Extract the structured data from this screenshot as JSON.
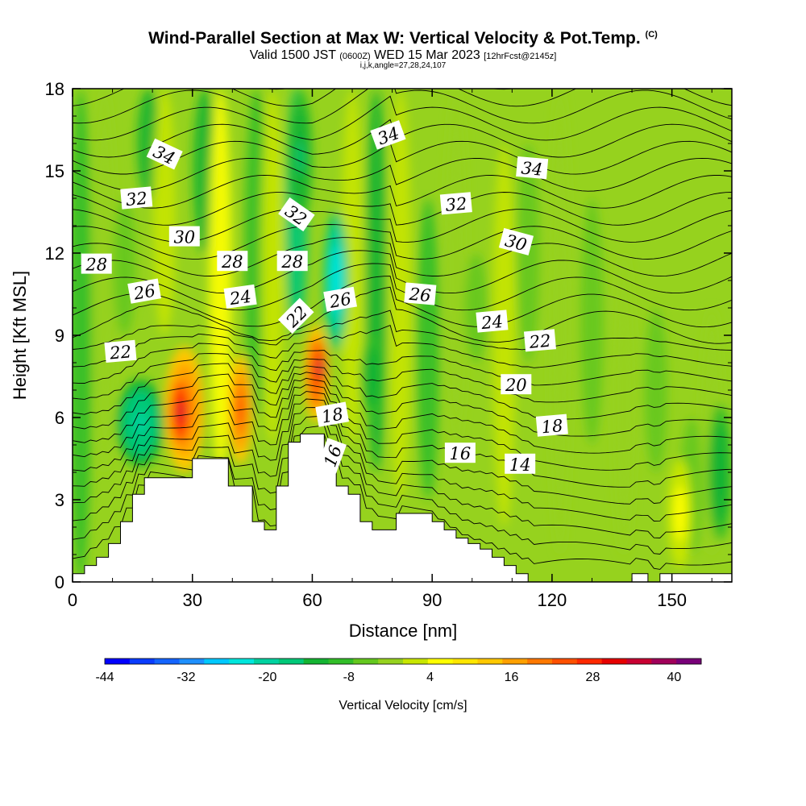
{
  "title": {
    "main": "Wind-Parallel Section at Max W: Vertical Velocity & Pot.Temp.",
    "copyright": "(C)",
    "valid_prefix": "Valid 1500 JST",
    "valid_utc": "(0600Z)",
    "valid_date": "WED 15 Mar 2023",
    "forecast": "[12hrFcst@2145z]",
    "indices": "i,j,k,angle=27,28,24,107"
  },
  "chart_data": {
    "type": "heatmap",
    "xlabel": "Distance [nm]",
    "ylabel": "Height [Kft MSL]",
    "xlim": [
      0,
      165
    ],
    "ylim": [
      0,
      18
    ],
    "xticks": [
      0,
      30,
      60,
      90,
      120,
      150
    ],
    "yticks": [
      0,
      3,
      6,
      9,
      12,
      15,
      18
    ],
    "colorbar": {
      "label": "Vertical Velocity [cm/s]",
      "min": -44,
      "max": 44,
      "step": 4,
      "tick_labels": [
        -44,
        -32,
        -20,
        -8,
        4,
        16,
        28,
        40
      ],
      "colors": [
        "#0000ff",
        "#0a3cff",
        "#1464ff",
        "#1e90ff",
        "#00c8ff",
        "#00e6dc",
        "#00d2a0",
        "#00c878",
        "#14b432",
        "#32be28",
        "#64c81e",
        "#96d21e",
        "#c8e600",
        "#ffff00",
        "#ffe600",
        "#ffc800",
        "#ffa000",
        "#ff7800",
        "#ff5000",
        "#ff2800",
        "#e60000",
        "#c80032",
        "#a0005a",
        "#780078"
      ]
    },
    "contours": {
      "variable": "Potential Temperature",
      "labels": [
        {
          "text": "34",
          "x": 23,
          "y": 15.6,
          "angle": 25
        },
        {
          "text": "34",
          "x": 79,
          "y": 16.3,
          "angle": -20
        },
        {
          "text": "34",
          "x": 115,
          "y": 15.1,
          "angle": 5
        },
        {
          "text": "32",
          "x": 16,
          "y": 14.0,
          "angle": -5
        },
        {
          "text": "32",
          "x": 56,
          "y": 13.4,
          "angle": 35
        },
        {
          "text": "32",
          "x": 96,
          "y": 13.8,
          "angle": -5
        },
        {
          "text": "30",
          "x": 28,
          "y": 12.6,
          "angle": 0
        },
        {
          "text": "30",
          "x": 111,
          "y": 12.4,
          "angle": 15
        },
        {
          "text": "28",
          "x": 6,
          "y": 11.6,
          "angle": 0
        },
        {
          "text": "28",
          "x": 40,
          "y": 11.7,
          "angle": 0
        },
        {
          "text": "28",
          "x": 55,
          "y": 11.7,
          "angle": 0
        },
        {
          "text": "26",
          "x": 18,
          "y": 10.6,
          "angle": -10
        },
        {
          "text": "26",
          "x": 67,
          "y": 10.3,
          "angle": -10
        },
        {
          "text": "26",
          "x": 87,
          "y": 10.5,
          "angle": 5
        },
        {
          "text": "24",
          "x": 42,
          "y": 10.4,
          "angle": -8
        },
        {
          "text": "24",
          "x": 105,
          "y": 9.5,
          "angle": -5
        },
        {
          "text": "22",
          "x": 12,
          "y": 8.4,
          "angle": -5
        },
        {
          "text": "22",
          "x": 56,
          "y": 9.7,
          "angle": -45
        },
        {
          "text": "22",
          "x": 117,
          "y": 8.8,
          "angle": -5
        },
        {
          "text": "20",
          "x": 111,
          "y": 7.2,
          "angle": 0
        },
        {
          "text": "18",
          "x": 65,
          "y": 6.1,
          "angle": -10
        },
        {
          "text": "18",
          "x": 120,
          "y": 5.7,
          "angle": -5
        },
        {
          "text": "16",
          "x": 65,
          "y": 4.6,
          "angle": -70
        },
        {
          "text": "16",
          "x": 97,
          "y": 4.7,
          "angle": 0
        },
        {
          "text": "14",
          "x": 112,
          "y": 4.3,
          "angle": 0
        }
      ]
    },
    "terrain": [
      [
        0,
        0.3
      ],
      [
        3,
        0.3
      ],
      [
        3,
        0.6
      ],
      [
        6,
        0.6
      ],
      [
        6,
        0.9
      ],
      [
        9,
        0.9
      ],
      [
        9,
        1.4
      ],
      [
        12,
        1.4
      ],
      [
        12,
        2.2
      ],
      [
        15,
        2.2
      ],
      [
        15,
        3.2
      ],
      [
        18,
        3.2
      ],
      [
        18,
        3.8
      ],
      [
        30,
        3.8
      ],
      [
        30,
        4.5
      ],
      [
        39,
        4.5
      ],
      [
        39,
        3.5
      ],
      [
        45,
        3.5
      ],
      [
        45,
        2.2
      ],
      [
        48,
        2.2
      ],
      [
        48,
        1.9
      ],
      [
        51,
        1.9
      ],
      [
        51,
        3.5
      ],
      [
        54,
        3.5
      ],
      [
        54,
        5.1
      ],
      [
        57,
        5.1
      ],
      [
        57,
        5.4
      ],
      [
        63,
        5.4
      ],
      [
        63,
        4.5
      ],
      [
        66,
        4.5
      ],
      [
        66,
        3.5
      ],
      [
        69,
        3.5
      ],
      [
        69,
        3.2
      ],
      [
        72,
        3.2
      ],
      [
        72,
        2.2
      ],
      [
        75,
        2.2
      ],
      [
        75,
        1.9
      ],
      [
        81,
        1.9
      ],
      [
        81,
        2.5
      ],
      [
        90,
        2.5
      ],
      [
        90,
        2.2
      ],
      [
        93,
        2.2
      ],
      [
        93,
        1.9
      ],
      [
        96,
        1.9
      ],
      [
        96,
        1.6
      ],
      [
        99,
        1.6
      ],
      [
        99,
        1.4
      ],
      [
        102,
        1.4
      ],
      [
        102,
        1.2
      ],
      [
        105,
        1.2
      ],
      [
        105,
        0.9
      ],
      [
        108,
        0.9
      ],
      [
        108,
        0.6
      ],
      [
        111,
        0.6
      ],
      [
        111,
        0.3
      ],
      [
        114,
        0.3
      ],
      [
        114,
        0.0
      ],
      [
        140,
        0.0
      ],
      [
        140,
        0.3
      ],
      [
        144,
        0.3
      ],
      [
        144,
        0.0
      ],
      [
        147,
        0.0
      ],
      [
        147,
        0.3
      ],
      [
        165,
        0.3
      ]
    ],
    "velocity_cells": [
      {
        "x": 28,
        "y": 6.3,
        "rx": 5,
        "ry": 2.3,
        "v": 32
      },
      {
        "x": 27,
        "y": 6.2,
        "rx": 3,
        "ry": 1.5,
        "v": 40
      },
      {
        "x": 42,
        "y": 6.3,
        "rx": 3,
        "ry": 2.0,
        "v": 30
      },
      {
        "x": 61,
        "y": 7.6,
        "rx": 3,
        "ry": 1.8,
        "v": 36
      },
      {
        "x": 62,
        "y": 7.8,
        "rx": 1.5,
        "ry": 1.0,
        "v": 44
      },
      {
        "x": 17,
        "y": 5.8,
        "rx": 6,
        "ry": 1.6,
        "v": -18
      },
      {
        "x": 66,
        "y": 11.0,
        "rx": 3,
        "ry": 2.5,
        "v": -24
      },
      {
        "x": 57,
        "y": 15.5,
        "rx": 3,
        "ry": 2.5,
        "v": -14
      },
      {
        "x": 75,
        "y": 7.5,
        "rx": 3,
        "ry": 1.5,
        "v": -12
      },
      {
        "x": 152,
        "y": 2.5,
        "rx": 3,
        "ry": 2.0,
        "v": 10
      },
      {
        "x": 162,
        "y": 4.0,
        "rx": 3,
        "ry": 2.5,
        "v": -12
      }
    ]
  }
}
